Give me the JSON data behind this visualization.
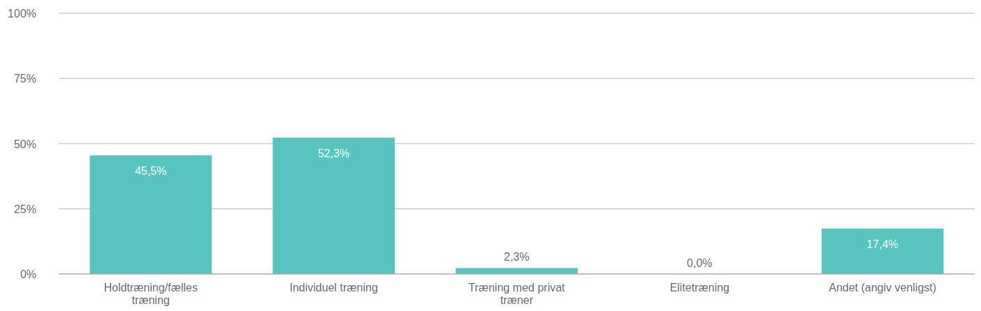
{
  "chart_data": {
    "type": "bar",
    "categories": [
      "Holdtræning/fælles træning",
      "Individuel træning",
      "Træning med privat træner",
      "Elitetræning",
      "Andet (angiv venligst)"
    ],
    "values": [
      45.5,
      52.3,
      2.3,
      0.0,
      17.4
    ],
    "value_labels": [
      "45,5%",
      "52,3%",
      "2,3%",
      "0,0%",
      "17,4%"
    ],
    "color": "#57c4c0",
    "ylim": [
      0,
      100
    ],
    "yticks": [
      {
        "value": 0,
        "label": "0%"
      },
      {
        "value": 25,
        "label": "25%"
      },
      {
        "value": 50,
        "label": "50%"
      },
      {
        "value": 75,
        "label": "75%"
      },
      {
        "value": 100,
        "label": "100%"
      }
    ],
    "grid": "y"
  }
}
